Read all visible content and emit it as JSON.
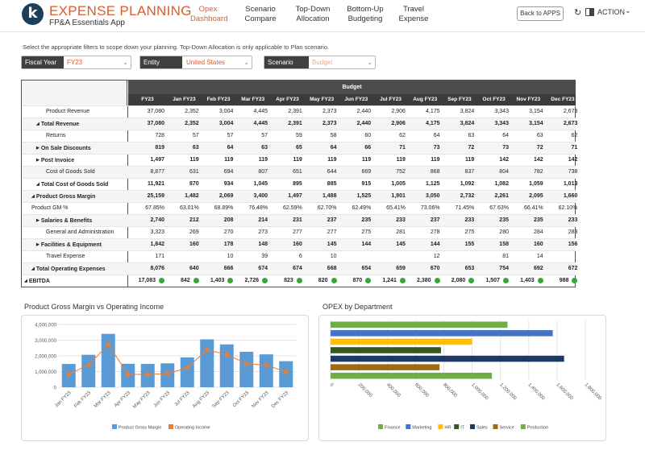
{
  "header": {
    "logo_letter": "k",
    "title": "EXPENSE PLANNING",
    "subtitle": "FP&A Essentials App",
    "nav": [
      {
        "label": "Opex\nDashboard",
        "active": true
      },
      {
        "label": "Scenario\nCompare",
        "active": false
      },
      {
        "label": "Top-Down\nAllocation",
        "active": false
      },
      {
        "label": "Bottom-Up\nBudgeting",
        "active": false
      },
      {
        "label": "Travel\nExpense",
        "active": false
      }
    ],
    "back_button": "Back to APPS",
    "action_label": "ACTION"
  },
  "filters": {
    "instructions": "Select the appropriate filters to scope down your planning. Top-Down Allocation is only applicable to Plan scenario.",
    "fiscal_year": {
      "label": "Fiscal Year",
      "value": "FY23"
    },
    "entity": {
      "label": "Entity",
      "value": "United States"
    },
    "scenario": {
      "label": "Scenario",
      "value": "Budget"
    }
  },
  "table": {
    "group_header": "Budget",
    "columns": [
      "FY23",
      "Jan FY23",
      "Feb FY23",
      "Mar FY23",
      "Apr FY23",
      "May FY23",
      "Jun FY23",
      "Jul FY23",
      "Aug FY23",
      "Sep FY23",
      "Oct FY23",
      "Nov FY23",
      "Dec FY23"
    ],
    "status_color": "#3aa63a",
    "rows": [
      {
        "label": "Product Revenue",
        "indent": 2,
        "bold": false,
        "marker": "",
        "values": [
          "37,080",
          "2,352",
          "3,004",
          "4,445",
          "2,391",
          "2,373",
          "2,440",
          "2,906",
          "4,175",
          "3,824",
          "3,343",
          "3,154",
          "2,673"
        ]
      },
      {
        "label": "Total Revenue",
        "indent": 1,
        "bold": true,
        "marker": "down",
        "values": [
          "37,080",
          "2,352",
          "3,004",
          "4,445",
          "2,391",
          "2,373",
          "2,440",
          "2,906",
          "4,175",
          "3,824",
          "3,343",
          "3,154",
          "2,673"
        ]
      },
      {
        "label": "Returns",
        "indent": 2,
        "bold": false,
        "marker": "",
        "values": [
          "728",
          "57",
          "57",
          "57",
          "59",
          "58",
          "60",
          "62",
          "64",
          "63",
          "64",
          "63",
          "62"
        ]
      },
      {
        "label": "On Sale Discounts",
        "indent": 1,
        "bold": true,
        "marker": "right",
        "values": [
          "819",
          "63",
          "64",
          "63",
          "65",
          "64",
          "66",
          "71",
          "73",
          "72",
          "73",
          "72",
          "71"
        ]
      },
      {
        "label": "Post Invoice",
        "indent": 1,
        "bold": true,
        "marker": "right",
        "values": [
          "1,497",
          "119",
          "119",
          "119",
          "119",
          "119",
          "119",
          "119",
          "119",
          "119",
          "142",
          "142",
          "142"
        ]
      },
      {
        "label": "Cost of Goods Sold",
        "indent": 2,
        "bold": false,
        "marker": "",
        "values": [
          "8,877",
          "631",
          "694",
          "807",
          "651",
          "644",
          "669",
          "752",
          "868",
          "837",
          "804",
          "782",
          "738"
        ]
      },
      {
        "label": "Total Cost of Goods Sold",
        "indent": 1,
        "bold": true,
        "marker": "down",
        "values": [
          "11,921",
          "870",
          "934",
          "1,045",
          "895",
          "885",
          "915",
          "1,005",
          "1,125",
          "1,092",
          "1,082",
          "1,059",
          "1,013"
        ]
      },
      {
        "label": "Product Gross Margin",
        "indent": 0,
        "bold": true,
        "marker": "down",
        "values": [
          "25,159",
          "1,482",
          "2,069",
          "3,400",
          "1,497",
          "1,488",
          "1,525",
          "1,901",
          "3,050",
          "2,732",
          "2,261",
          "2,095",
          "1,660"
        ]
      },
      {
        "label": "Product GM %",
        "indent": 0,
        "bold": false,
        "marker": "",
        "values": [
          "67.85%",
          "63.01%",
          "68.89%",
          "76.48%",
          "62.59%",
          "62.70%",
          "62.49%",
          "65.41%",
          "73.06%",
          "71.45%",
          "67.63%",
          "66.41%",
          "62.10%"
        ]
      },
      {
        "label": "Salaries & Benefits",
        "indent": 1,
        "bold": true,
        "marker": "right",
        "values": [
          "2,740",
          "212",
          "208",
          "214",
          "231",
          "237",
          "235",
          "233",
          "237",
          "233",
          "235",
          "235",
          "233"
        ]
      },
      {
        "label": "General and Administration",
        "indent": 2,
        "bold": false,
        "marker": "",
        "values": [
          "3,323",
          "269",
          "270",
          "273",
          "277",
          "277",
          "275",
          "281",
          "278",
          "275",
          "280",
          "284",
          "283"
        ]
      },
      {
        "label": "Facilities & Equipment",
        "indent": 1,
        "bold": true,
        "marker": "right",
        "values": [
          "1,842",
          "160",
          "178",
          "148",
          "160",
          "145",
          "144",
          "145",
          "144",
          "155",
          "158",
          "160",
          "156"
        ]
      },
      {
        "label": "Travel Expense",
        "indent": 2,
        "bold": false,
        "marker": "",
        "values": [
          "171",
          "",
          "10",
          "39",
          "6",
          "10",
          "",
          "",
          "12",
          "",
          "81",
          "14",
          ""
        ]
      },
      {
        "label": "Total Operating Expenses",
        "indent": 0,
        "bold": true,
        "marker": "down",
        "values": [
          "8,076",
          "640",
          "666",
          "674",
          "674",
          "668",
          "654",
          "659",
          "670",
          "653",
          "754",
          "692",
          "672"
        ]
      },
      {
        "label": "EBITDA",
        "indent": -1,
        "bold": true,
        "marker": "down",
        "dots": true,
        "values": [
          "17,083",
          "842",
          "1,403",
          "2,726",
          "823",
          "820",
          "870",
          "1,241",
          "2,380",
          "2,080",
          "1,507",
          "1,403",
          "988"
        ]
      }
    ]
  },
  "chart_left": {
    "title": "Product Gross Margin vs Operating Income",
    "chart_data": {
      "type": "bar",
      "categories": [
        "Jan FY23",
        "Feb FY23",
        "Mar FY23",
        "Apr FY23",
        "May FY23",
        "Jun FY23",
        "Jul FY23",
        "Aug FY23",
        "Sep FY23",
        "Oct FY23",
        "Nov FY23",
        "Dec FY23"
      ],
      "series": [
        {
          "name": "Product Gross Margin",
          "type": "bar",
          "color": "#5b9bd5",
          "values": [
            1482000,
            2069000,
            3400000,
            1497000,
            1488000,
            1525000,
            1901000,
            3050000,
            2732000,
            2261000,
            2095000,
            1660000
          ]
        },
        {
          "name": "Operating Income",
          "type": "line",
          "color": "#ed7d31",
          "values": [
            842000,
            1403000,
            2726000,
            823000,
            820000,
            870000,
            1241000,
            2380000,
            2080000,
            1507000,
            1403000,
            988000
          ]
        }
      ],
      "ylim": [
        0,
        4000000
      ],
      "yticks": [
        "0",
        "1,000,000",
        "2,000,000",
        "3,000,000",
        "4,000,000"
      ],
      "grid": true,
      "legend": "bottom"
    }
  },
  "chart_right": {
    "title": "OPEX by Department",
    "chart_data": {
      "type": "bar",
      "orientation": "horizontal",
      "categories": [
        "Finance",
        "Marketing",
        "HR",
        "IT",
        "Sales",
        "Service",
        "Production"
      ],
      "values": [
        1250000,
        1570000,
        1000000,
        780000,
        1650000,
        770000,
        1140000
      ],
      "colors": [
        "#70ad47",
        "#4472c4",
        "#ffc000",
        "#375623",
        "#203864",
        "#9e6b13",
        "#70ad47"
      ],
      "xlim": [
        0,
        1800000
      ],
      "xticks": [
        "0",
        "200,000",
        "400,000",
        "600,000",
        "800,000",
        "1,000,000",
        "1,200,000",
        "1,400,000",
        "1,600,000",
        "1,800,000"
      ],
      "grid": true,
      "legend": "bottom"
    }
  }
}
